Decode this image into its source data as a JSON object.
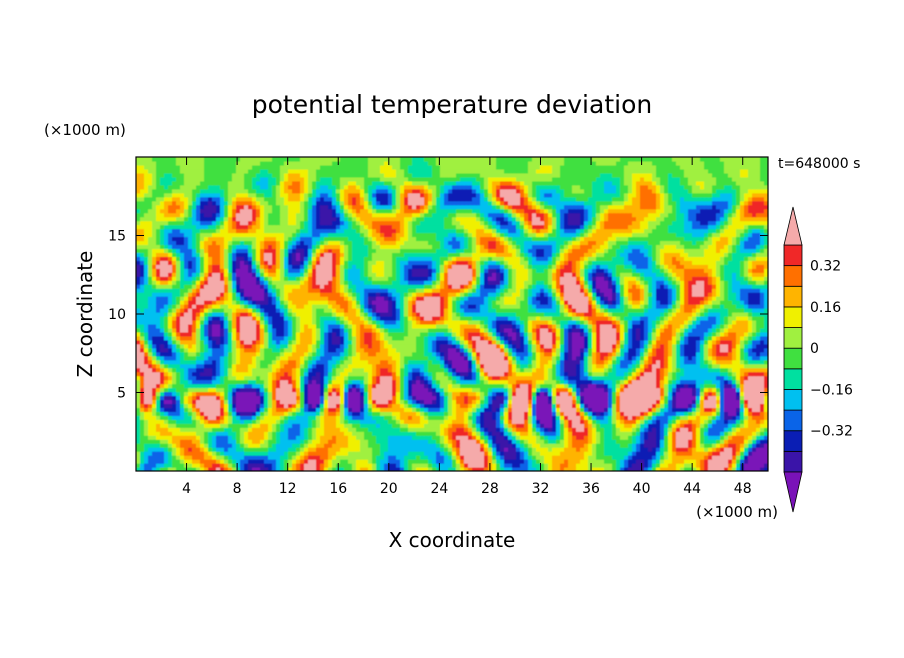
{
  "chart_data": {
    "type": "heatmap",
    "title": "potential temperature deviation",
    "xlabel": "X coordinate",
    "ylabel": "Z coordinate",
    "x_unit": "(×1000 m)",
    "y_unit": "(×1000 m)",
    "time_label": "t=648000 s",
    "xlim": [
      0,
      50
    ],
    "ylim": [
      0,
      20
    ],
    "x_ticks": [
      4,
      8,
      12,
      16,
      20,
      24,
      28,
      32,
      36,
      40,
      44,
      48
    ],
    "y_ticks": [
      5,
      10,
      15
    ],
    "colorbar": {
      "levels": [
        -0.48,
        -0.4,
        -0.32,
        -0.24,
        -0.16,
        -0.08,
        0,
        0.08,
        0.16,
        0.24,
        0.32,
        0.4
      ],
      "tick_values": [
        0.32,
        0.16,
        0,
        -0.16,
        -0.32
      ],
      "tick_labels": [
        "0.32",
        "0.16",
        "0",
        "−0.16",
        "−0.32"
      ],
      "colors": [
        "#7a12b8",
        "#3a14a8",
        "#0a1eb4",
        "#0a64e8",
        "#00c0f0",
        "#00e0a0",
        "#40e040",
        "#a0f040",
        "#f0f000",
        "#ffb400",
        "#ff7000",
        "#f02828",
        "#f5aaaa"
      ],
      "extend": "both"
    },
    "grid": false,
    "legend": "colorbar-right"
  }
}
